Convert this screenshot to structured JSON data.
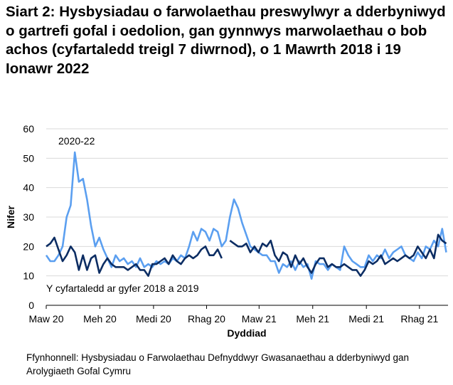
{
  "chart_data": {
    "type": "line",
    "title": "Siart 2: Hysbysiadau o farwolaethau preswylwyr a dderbyniwyd o gartrefi gofal i oedolion, gan gynnwys marwolaethau o bob achos (cyfartaledd treigl 7 diwrnod), o 1 Mawrth 2018 i 19 Ionawr 2022",
    "xlabel": "Dyddiad",
    "ylabel": "Nifer",
    "ylim": [
      0,
      60
    ],
    "yticks": [
      0,
      10,
      20,
      30,
      40,
      50,
      60
    ],
    "xticks": [
      "Maw 20",
      "Meh 20",
      "Medi 20",
      "Rhag 20",
      "Maw 21",
      "Meh 21",
      "Medi 21",
      "Rhag 21"
    ],
    "xtick_days": [
      0,
      92,
      184,
      275,
      365,
      457,
      549,
      640
    ],
    "x_range_days": [
      0,
      689
    ],
    "x_step_days": 7,
    "grid": true,
    "series": [
      {
        "name": "2020-22",
        "label": "2020-22",
        "color": "#5b9ff0",
        "values": [
          17,
          15,
          15,
          17,
          20,
          30,
          34,
          52,
          42,
          43,
          36,
          27,
          20,
          23,
          19,
          16,
          13,
          17,
          15,
          16,
          14,
          15,
          13,
          16,
          13,
          14,
          13,
          15,
          14,
          15,
          14,
          16,
          15,
          17,
          16,
          20,
          25,
          22,
          26,
          25,
          22,
          26,
          25,
          20,
          22,
          30,
          36,
          33,
          28,
          24,
          20,
          19,
          18,
          17,
          17,
          15,
          15,
          11,
          14,
          13,
          15,
          12,
          15,
          13,
          14,
          9,
          15,
          14,
          14,
          12,
          14,
          13,
          12,
          20,
          17,
          15,
          14,
          13,
          13,
          17,
          15,
          17,
          16,
          19,
          16,
          18,
          19,
          20,
          17,
          16,
          15,
          18,
          16,
          20,
          19,
          22,
          20,
          26,
          18
        ]
      },
      {
        "name": "Y cyfartaledd ar gyfer 2018 a 2019",
        "label": "Y cyfartaledd ar gyfer 2018 a 2019",
        "color": "#0c2d63",
        "values": [
          20,
          21,
          23,
          19,
          15,
          17,
          20,
          18,
          12,
          17,
          12,
          16,
          17,
          11,
          14,
          16,
          14,
          13,
          13,
          13,
          12,
          13,
          14,
          12,
          12,
          10,
          14,
          14,
          15,
          16,
          14,
          17,
          15,
          14,
          16,
          17,
          16,
          17,
          19,
          20,
          17,
          17,
          19,
          16,
          null,
          22,
          21,
          20,
          20,
          21,
          18,
          20,
          18,
          21,
          20,
          22,
          17,
          15,
          18,
          17,
          13,
          17,
          14,
          16,
          13,
          11,
          14,
          16,
          16,
          13,
          14,
          13,
          13,
          14,
          13,
          12,
          12,
          10,
          12,
          15,
          14,
          15,
          17,
          14,
          15,
          16,
          15,
          16,
          17,
          16,
          17,
          20,
          18,
          16,
          19,
          16,
          24,
          22,
          21
        ]
      }
    ]
  }
}
